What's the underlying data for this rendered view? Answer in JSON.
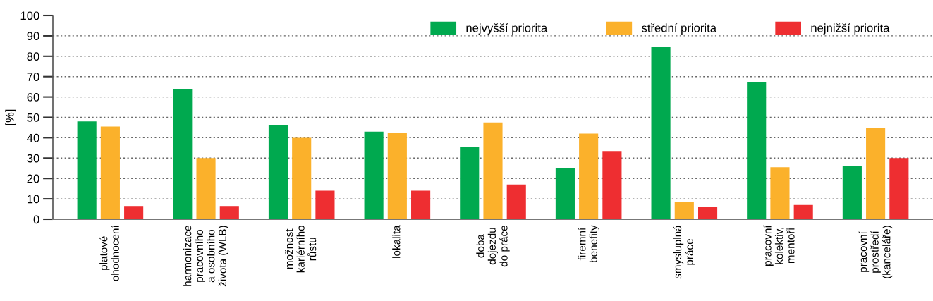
{
  "chart_data": {
    "type": "bar",
    "ylabel": "[%]",
    "categories": [
      "platové\nohodnocení",
      "harmonizace\npracovního\na osobního\nživota (WLB)",
      "možnost\nkariérního\nrůstu",
      "lokalita",
      "doba\ndojezdu\ndo práce",
      "firemní\nbenefity",
      "smysluplná\npráce",
      "pracovní\nkolektiv,\nmentoři",
      "pracovní\nprostředí\n(kanceláře)"
    ],
    "series": [
      {
        "name": "nejvyšší priorita",
        "color": "#00a94f",
        "values": [
          48,
          64,
          46,
          43,
          35.5,
          25,
          84.5,
          67.5,
          26
        ]
      },
      {
        "name": "střední priorita",
        "color": "#fbb12b",
        "values": [
          45.5,
          30,
          40,
          42.5,
          47.5,
          42,
          8.5,
          25.5,
          45
        ]
      },
      {
        "name": "nejnižší priorita",
        "color": "#ee2e31",
        "values": [
          6.5,
          6.5,
          14,
          14,
          17,
          33.5,
          6.2,
          7,
          30
        ]
      }
    ],
    "ylim": [
      0,
      100
    ],
    "yticks": [
      0,
      10,
      20,
      30,
      40,
      50,
      60,
      70,
      80,
      90,
      100
    ],
    "grid": "y",
    "legend": "top right"
  }
}
